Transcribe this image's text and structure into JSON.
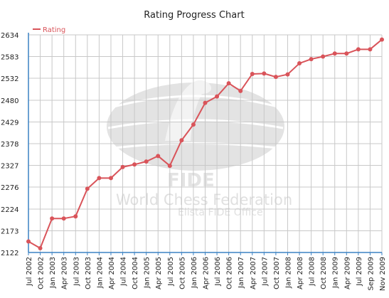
{
  "chart_data": {
    "type": "line",
    "title": "Rating Progress Chart",
    "xlabel": "",
    "ylabel": "",
    "legend": {
      "placement": "top-left"
    },
    "grid": true,
    "ylim": [
      2122,
      2634
    ],
    "yticks": [
      2122,
      2173,
      2224,
      2276,
      2327,
      2378,
      2429,
      2480,
      2532,
      2583,
      2634
    ],
    "categories": [
      "Jul 2002",
      "Oct 2002",
      "Jan 2003",
      "Apr 2003",
      "Jul 2003",
      "Oct 2003",
      "Jan 2004",
      "Apr 2004",
      "Jul 2004",
      "Oct 2004",
      "Jan 2005",
      "Apr 2005",
      "Jul 2005",
      "Oct 2005",
      "Jan 2006",
      "Apr 2006",
      "Jul 2006",
      "Oct 2006",
      "Jan 2007",
      "Apr 2007",
      "Jul 2007",
      "Oct 2007",
      "Jan 2008",
      "Apr 2008",
      "Jul 2008",
      "Oct 2008",
      "Jan 2009",
      "Apr 2009",
      "Jul 2009",
      "Sep 2009",
      "Nov 2009"
    ],
    "series": [
      {
        "name": "Rating",
        "color": "#d9545a",
        "values": [
          2148,
          2132,
          2202,
          2202,
          2207,
          2272,
          2297,
          2297,
          2323,
          2329,
          2336,
          2349,
          2326,
          2386,
          2423,
          2474,
          2489,
          2520,
          2502,
          2542,
          2543,
          2535,
          2541,
          2567,
          2577,
          2583,
          2590,
          2590,
          2600,
          2600,
          2623
        ]
      }
    ]
  },
  "watermark": {
    "acronym": "FIDE",
    "org": "World Chess Federation",
    "office": "Elista FIDE Office"
  },
  "colors": {
    "line": "#d9545a",
    "grid": "#c8c8c8",
    "axis": "#3b82c4",
    "watermark": "#e3e3e3"
  }
}
